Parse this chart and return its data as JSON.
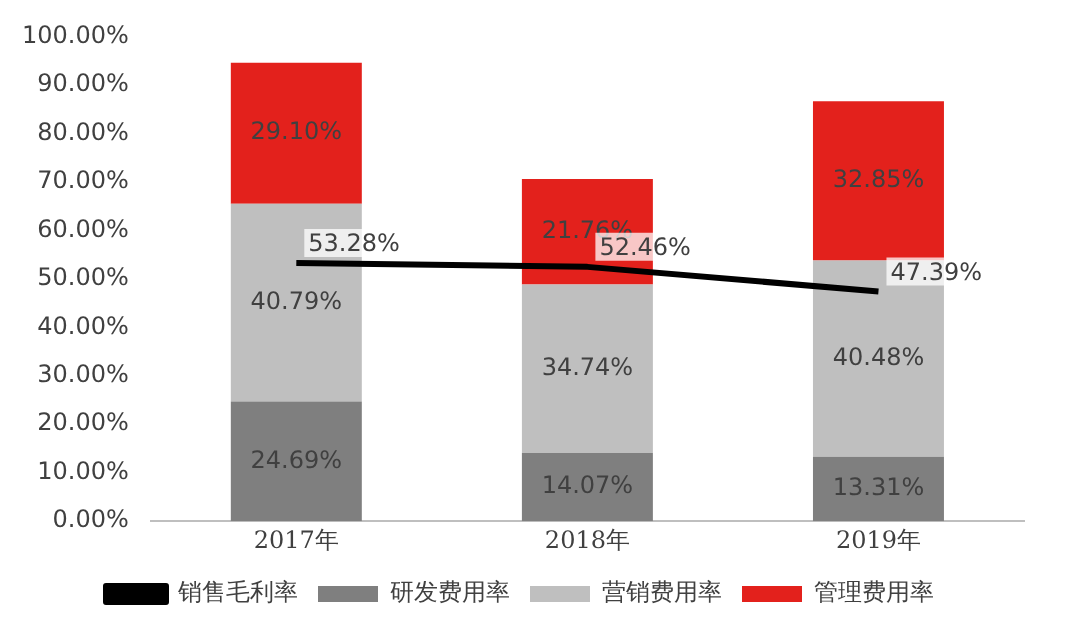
{
  "chart_data": {
    "type": "bar",
    "stacked": true,
    "categories": [
      "2017年",
      "2018年",
      "2019年"
    ],
    "series": [
      {
        "name": "研发费用率",
        "color": "#7f7f7f",
        "values": [
          24.69,
          14.07,
          13.31
        ],
        "value_labels": [
          "24.69%",
          "14.07%",
          "13.31%"
        ]
      },
      {
        "name": "营销费用率",
        "color": "#bfbfbf",
        "values": [
          40.79,
          34.74,
          40.48
        ],
        "value_labels": [
          "40.79%",
          "34.74%",
          "40.48%"
        ]
      },
      {
        "name": "管理费用率",
        "color": "#e3211c",
        "values": [
          29.1,
          21.76,
          32.85
        ],
        "value_labels": [
          "29.10%",
          "21.76%",
          "32.85%"
        ]
      },
      {
        "name": "销售毛利率",
        "type": "line",
        "color": "#000000",
        "marker": "none",
        "values": [
          53.28,
          52.46,
          47.39
        ],
        "value_labels": [
          "53.28%",
          "52.46%",
          "47.39%"
        ]
      }
    ],
    "ylim": [
      0,
      100
    ],
    "yticks": [
      {
        "value": 0,
        "label": "0.00%"
      },
      {
        "value": 10,
        "label": "10.00%"
      },
      {
        "value": 20,
        "label": "20.00%"
      },
      {
        "value": 30,
        "label": "30.00%"
      },
      {
        "value": 40,
        "label": "40.00%"
      },
      {
        "value": 50,
        "label": "50.00%"
      },
      {
        "value": 60,
        "label": "60.00%"
      },
      {
        "value": 70,
        "label": "70.00%"
      },
      {
        "value": 80,
        "label": "80.00%"
      },
      {
        "value": 90,
        "label": "90.00%"
      },
      {
        "value": 100,
        "label": "100.00%"
      }
    ],
    "grid": false,
    "legend": "bottom"
  }
}
